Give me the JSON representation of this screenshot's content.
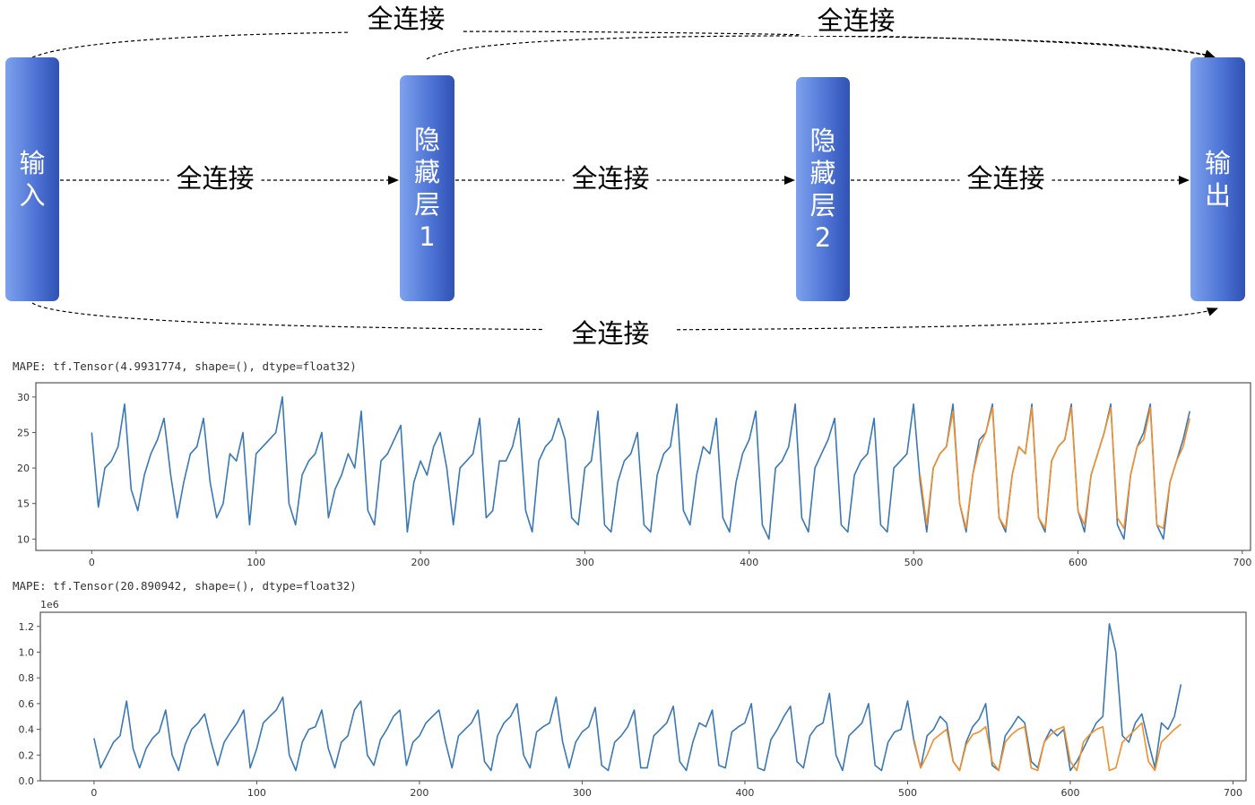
{
  "diagram": {
    "nodes": [
      {
        "id": "input",
        "chars": [
          "输",
          "入"
        ]
      },
      {
        "id": "hidden1",
        "chars": [
          "隐",
          "藏",
          "层",
          "1"
        ]
      },
      {
        "id": "hidden2",
        "chars": [
          "隐",
          "藏",
          "层",
          "2"
        ]
      },
      {
        "id": "output",
        "chars": [
          "输",
          "出"
        ]
      }
    ],
    "edge_label": "全连接",
    "edges": [
      {
        "from": "input",
        "to": "hidden1",
        "label": "全连接"
      },
      {
        "from": "hidden1",
        "to": "hidden2",
        "label": "全连接"
      },
      {
        "from": "hidden2",
        "to": "output",
        "label": "全连接"
      },
      {
        "from": "input",
        "to": "output",
        "label": "全连接",
        "route": "top"
      },
      {
        "from": "hidden1",
        "to": "output",
        "label": "全连接",
        "route": "top"
      },
      {
        "from": "input",
        "to": "output",
        "label": "全连接",
        "route": "bottom"
      }
    ],
    "colors": {
      "node": "#4f75d6",
      "line": "#000000"
    }
  },
  "chart_data": [
    {
      "type": "line",
      "title": "MAPE: tf.Tensor(4.9931774, shape=(), dtype=float32)",
      "xlim": [
        -34,
        705
      ],
      "ylim": [
        8.4,
        32
      ],
      "xticks": [
        0,
        100,
        200,
        300,
        400,
        500,
        600,
        700
      ],
      "yticks": [
        10,
        15,
        20,
        25,
        30
      ],
      "grid": false,
      "x_start": 0,
      "x_step": 4,
      "series": [
        {
          "color": "#3a78b5",
          "values": [
            25,
            14.5,
            20,
            21,
            23,
            29,
            17,
            14,
            19,
            22,
            24,
            27,
            19,
            13,
            18,
            22,
            23,
            27,
            18,
            13,
            15,
            22,
            21,
            25,
            12,
            22,
            23,
            24,
            25,
            30,
            15,
            12,
            19,
            21,
            22,
            25,
            13,
            17,
            19,
            22,
            20,
            28,
            14,
            12,
            21,
            22,
            24,
            26,
            11,
            18,
            21,
            19,
            23,
            25,
            20,
            12,
            20,
            21,
            22,
            27,
            13,
            14,
            21,
            21,
            23,
            27,
            14,
            11,
            21,
            23,
            24,
            27,
            24,
            13,
            12,
            20,
            21,
            28,
            12,
            11,
            18,
            21,
            22,
            25,
            12,
            11,
            19,
            22,
            23,
            29,
            14,
            12,
            19,
            23,
            22,
            27,
            13,
            11,
            18,
            22,
            24,
            28,
            12,
            10,
            20,
            21,
            23,
            29,
            13,
            11,
            20,
            22,
            24,
            27,
            12,
            11,
            19,
            21,
            22,
            27,
            12,
            11,
            20,
            21,
            22,
            29,
            18,
            11,
            20,
            22,
            23,
            29,
            15,
            11,
            19,
            24,
            25,
            29,
            13,
            11,
            19,
            23,
            22,
            29,
            13,
            11,
            21,
            23,
            24,
            29,
            14,
            11,
            19,
            22,
            25,
            29,
            12,
            10,
            19,
            23,
            25,
            29,
            12,
            10,
            18,
            21,
            24,
            28
          ]
        },
        {
          "color": "#f28e2b",
          "x_start": 504,
          "values": [
            19,
            12,
            20,
            22,
            23,
            28,
            15,
            11.5,
            19,
            23,
            25,
            28.5,
            13,
            11.5,
            19,
            23,
            22,
            28.5,
            13,
            11.5,
            21,
            23,
            24,
            28.5,
            14,
            12,
            19,
            22,
            25,
            28.5,
            13,
            11.5,
            19,
            23,
            24,
            28.5,
            12,
            11.5,
            18,
            21,
            23,
            27
          ]
        }
      ]
    },
    {
      "type": "line",
      "title": "MAPE: tf.Tensor(20.890942, shape=(), dtype=float32)",
      "offset_label": "1e6",
      "xlim": [
        -33,
        708
      ],
      "ylim": [
        0,
        1.31
      ],
      "xticks": [
        0,
        100,
        200,
        300,
        400,
        500,
        600,
        700
      ],
      "yticks": [
        0.0,
        0.2,
        0.4,
        0.6,
        0.8,
        1.0,
        1.2
      ],
      "grid": false,
      "x_start": 0,
      "x_step": 4,
      "series": [
        {
          "color": "#3a78b5",
          "values": [
            0.33,
            0.1,
            0.2,
            0.3,
            0.35,
            0.62,
            0.25,
            0.1,
            0.25,
            0.33,
            0.38,
            0.55,
            0.2,
            0.08,
            0.28,
            0.4,
            0.45,
            0.52,
            0.3,
            0.12,
            0.3,
            0.38,
            0.45,
            0.55,
            0.1,
            0.25,
            0.45,
            0.5,
            0.55,
            0.65,
            0.2,
            0.08,
            0.3,
            0.4,
            0.42,
            0.55,
            0.25,
            0.1,
            0.3,
            0.35,
            0.55,
            0.62,
            0.2,
            0.12,
            0.32,
            0.4,
            0.5,
            0.55,
            0.12,
            0.3,
            0.35,
            0.45,
            0.5,
            0.55,
            0.3,
            0.1,
            0.35,
            0.4,
            0.45,
            0.55,
            0.15,
            0.08,
            0.35,
            0.45,
            0.5,
            0.6,
            0.2,
            0.1,
            0.38,
            0.42,
            0.45,
            0.65,
            0.3,
            0.1,
            0.3,
            0.38,
            0.42,
            0.57,
            0.12,
            0.08,
            0.3,
            0.35,
            0.42,
            0.55,
            0.1,
            0.1,
            0.35,
            0.4,
            0.45,
            0.58,
            0.15,
            0.08,
            0.3,
            0.45,
            0.42,
            0.55,
            0.12,
            0.1,
            0.38,
            0.42,
            0.45,
            0.6,
            0.1,
            0.08,
            0.32,
            0.4,
            0.5,
            0.58,
            0.15,
            0.1,
            0.35,
            0.42,
            0.45,
            0.68,
            0.2,
            0.08,
            0.35,
            0.4,
            0.45,
            0.6,
            0.12,
            0.08,
            0.3,
            0.38,
            0.4,
            0.62,
            0.3,
            0.1,
            0.35,
            0.4,
            0.5,
            0.45,
            0.15,
            0.08,
            0.3,
            0.42,
            0.48,
            0.6,
            0.12,
            0.08,
            0.35,
            0.42,
            0.5,
            0.45,
            0.15,
            0.1,
            0.3,
            0.4,
            0.35,
            0.4,
            0.08,
            0.15,
            0.25,
            0.35,
            0.45,
            0.5,
            1.22,
            1.0,
            0.35,
            0.3,
            0.45,
            0.52,
            0.3,
            0.1,
            0.45,
            0.4,
            0.5,
            0.75
          ]
        },
        {
          "color": "#f28e2b",
          "x_start": 504,
          "values": [
            0.32,
            0.1,
            0.2,
            0.32,
            0.36,
            0.4,
            0.15,
            0.08,
            0.28,
            0.36,
            0.38,
            0.42,
            0.15,
            0.08,
            0.3,
            0.36,
            0.4,
            0.42,
            0.1,
            0.08,
            0.3,
            0.36,
            0.4,
            0.42,
            0.15,
            0.08,
            0.3,
            0.36,
            0.4,
            0.42,
            0.08,
            0.1,
            0.3,
            0.35,
            0.4,
            0.45,
            0.15,
            0.08,
            0.3,
            0.35,
            0.4,
            0.44
          ]
        }
      ]
    }
  ]
}
